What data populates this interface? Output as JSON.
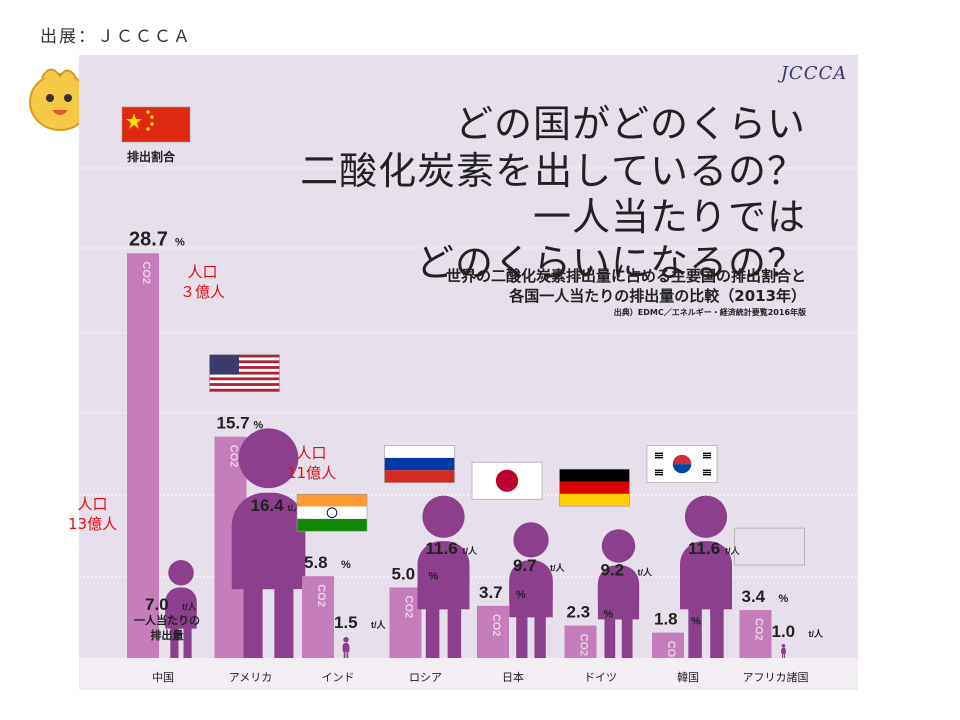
{
  "source_label": "出展：ＪＣＣＣＡ",
  "logo_text": "JCCCA",
  "title_lines": [
    "どの国がどのくらい",
    "二酸化炭素を出しているの？",
    "一人当たりでは",
    "どのくらいになるの？"
  ],
  "subtitle_lines": [
    "世界の二酸化炭素排出量に占める主要国の排出割合と",
    "各国一人当たりの排出量の比較（2013年）"
  ],
  "citation": "出典）EDMC／エネルギー・経済統計要覧2016年版",
  "overlays": [
    {
      "line1": "人口",
      "line2": "３億人"
    },
    {
      "line1": "人口",
      "line2": "11億人"
    },
    {
      "line1": "人口",
      "line2": "13億人"
    }
  ],
  "chart_data": {
    "type": "bar",
    "categories": [
      "中国",
      "アメリカ",
      "インド",
      "ロシア",
      "日本",
      "ドイツ",
      "韓国",
      "アフリカ諸国"
    ],
    "share_label": "排出割合",
    "per_capita_label_lines": [
      "一人当たりの",
      "排出量"
    ],
    "bar_text": "CO2",
    "series": [
      {
        "values": [
          28.7,
          15.7,
          5.8,
          5.0,
          3.7,
          2.3,
          1.8,
          3.4
        ],
        "unit": "%"
      },
      {
        "values": [
          7.0,
          16.4,
          1.5,
          11.6,
          9.7,
          9.2,
          11.6,
          1.0
        ],
        "unit": "t/人"
      }
    ],
    "colors": {
      "bar": "#c67dbb",
      "person": "#8b3f8c",
      "background": "#e7dfec",
      "gridline": "#ffffff"
    }
  }
}
